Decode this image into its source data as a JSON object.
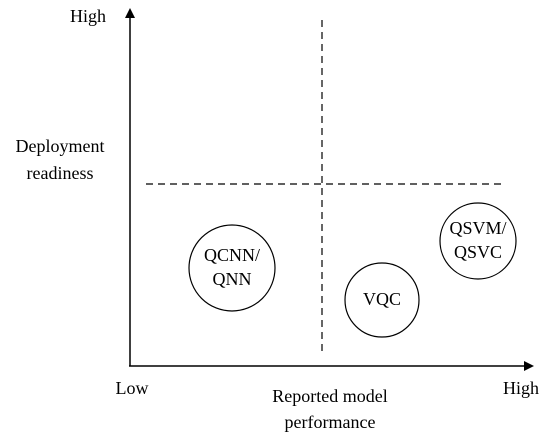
{
  "axes": {
    "y": {
      "high": "High",
      "label": [
        "Deployment",
        "readiness"
      ]
    },
    "x": {
      "low": "Low",
      "high": "High",
      "label": [
        "Reported model",
        "performance"
      ]
    }
  },
  "nodes": [
    {
      "label": [
        "QCNN/",
        "QNN"
      ]
    },
    {
      "label": [
        "VQC"
      ]
    },
    {
      "label": [
        "QSVM/",
        "QSVC"
      ]
    }
  ]
}
